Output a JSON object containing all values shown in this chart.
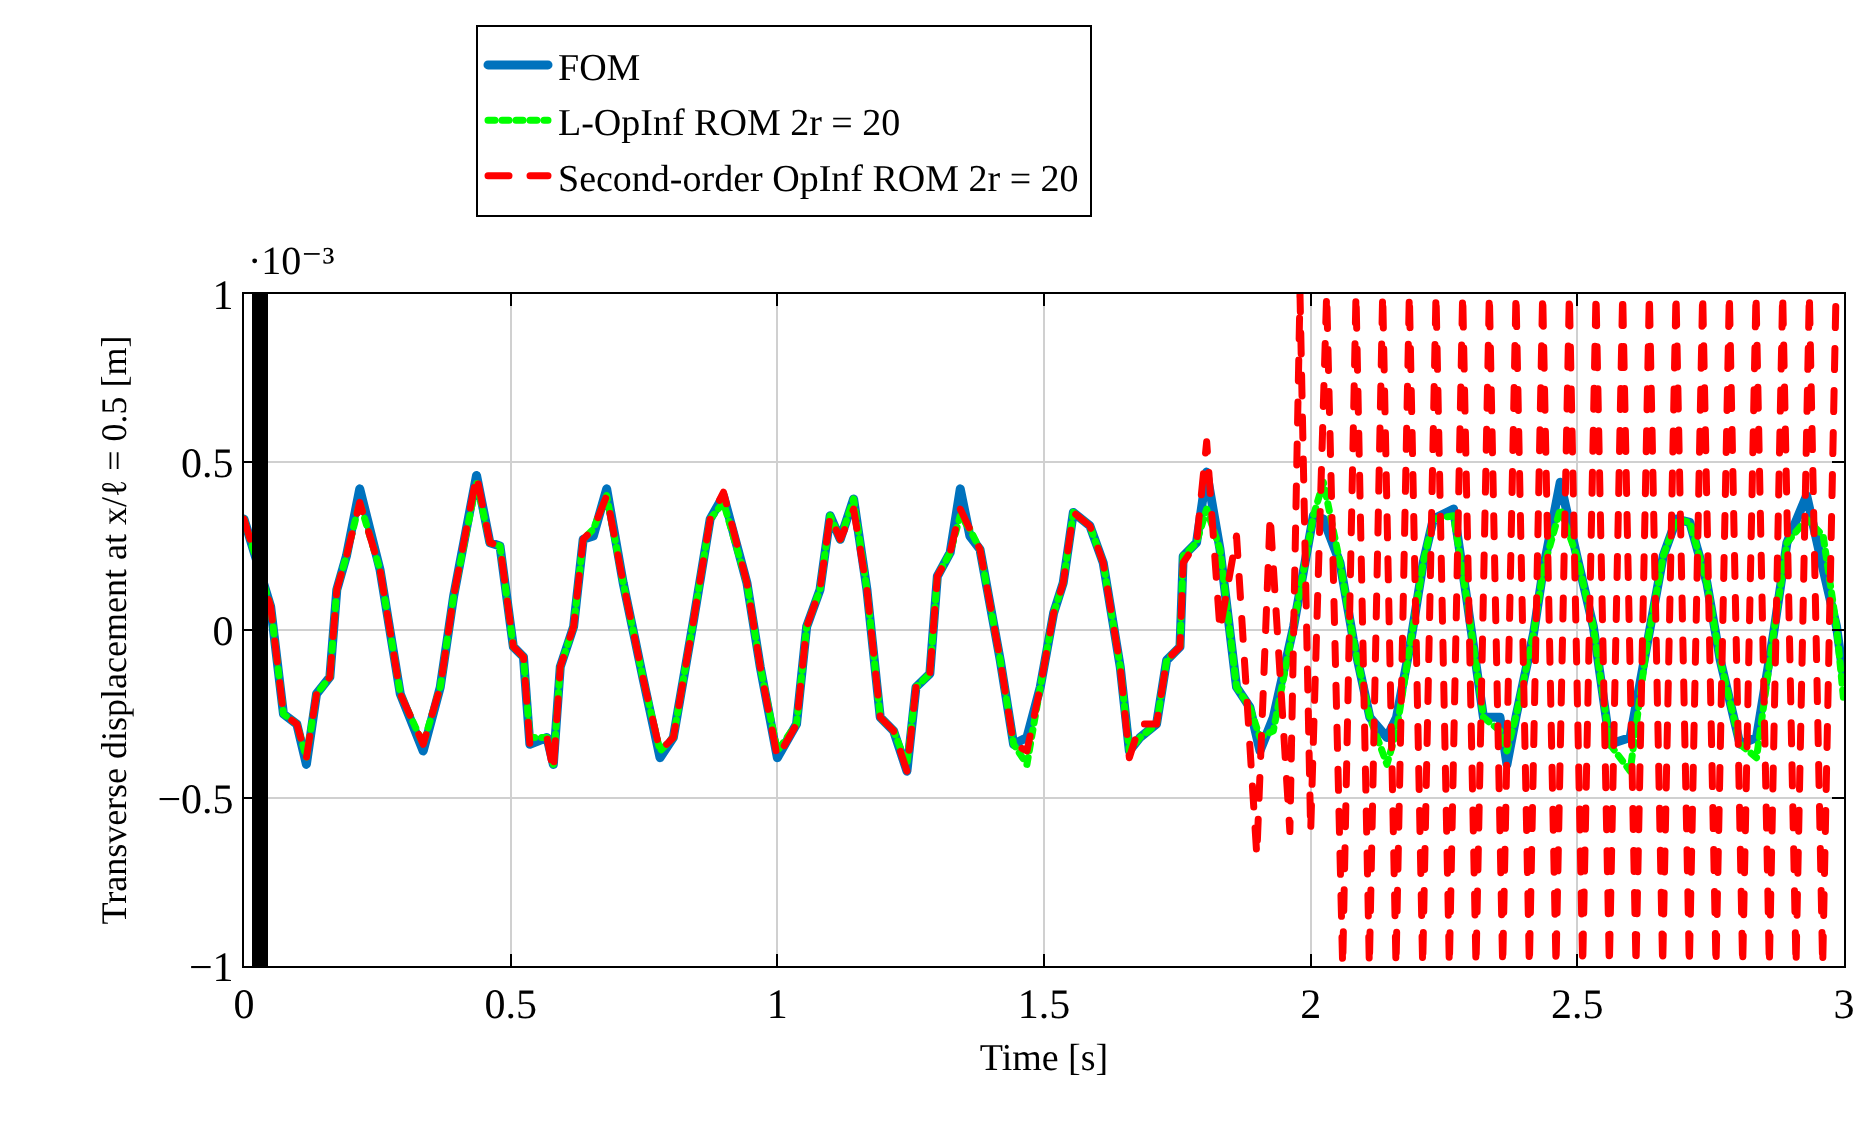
{
  "chart_data": {
    "type": "line",
    "xlabel": "Time [s]",
    "ylabel": "Transverse displacement at x/ℓ = 0.5 [m]",
    "annotations": [
      "·10⁻³"
    ],
    "xlim": [
      0,
      3
    ],
    "xticks": [
      0,
      0.5,
      1,
      1.5,
      2,
      2.5,
      3
    ],
    "ylim": [
      -1,
      1
    ],
    "yticks": [
      -1,
      -0.5,
      0,
      0.5,
      1
    ],
    "grid": true,
    "legend": "top",
    "marker": "none",
    "bands": [
      {
        "axis": "x",
        "from": 0.015,
        "to": 0.045,
        "color": "#000000"
      }
    ],
    "series": [
      {
        "name": "FOM",
        "color": "#0072bd",
        "line_style": "solid",
        "x": [
          0,
          0.05,
          0.074,
          0.099,
          0.117,
          0.136,
          0.161,
          0.174,
          0.192,
          0.217,
          0.255,
          0.293,
          0.336,
          0.368,
          0.393,
          0.436,
          0.461,
          0.48,
          0.505,
          0.524,
          0.536,
          0.568,
          0.58,
          0.593,
          0.618,
          0.636,
          0.655,
          0.68,
          0.711,
          0.749,
          0.78,
          0.805,
          0.843,
          0.874,
          0.899,
          0.943,
          0.968,
          1.0,
          1.036,
          1.055,
          1.08,
          1.099,
          1.118,
          1.143,
          1.168,
          1.193,
          1.218,
          1.243,
          1.26,
          1.286,
          1.3,
          1.324,
          1.343,
          1.361,
          1.38,
          1.418,
          1.443,
          1.468,
          1.493,
          1.518,
          1.536,
          1.555,
          1.586,
          1.611,
          1.643,
          1.66,
          1.68,
          1.711,
          1.73,
          1.755,
          1.761,
          1.786,
          1.805,
          1.83,
          1.861,
          1.886,
          1.905,
          1.93,
          1.968,
          2.005,
          2.024,
          2.055,
          2.08,
          2.111,
          2.143,
          2.161,
          2.186,
          2.211,
          2.23,
          2.268,
          2.293,
          2.324,
          2.355,
          2.368,
          2.386,
          2.418,
          2.436,
          2.468,
          2.499,
          2.53,
          2.561,
          2.599,
          2.63,
          2.661,
          2.686,
          2.711,
          2.743,
          2.768,
          2.805,
          2.836,
          2.868,
          2.893,
          2.93,
          2.961,
          2.986,
          3.0
        ],
        "values": [
          0.33,
          0.07,
          -0.25,
          -0.28,
          -0.4,
          -0.19,
          -0.14,
          0.12,
          0.22,
          0.42,
          0.18,
          -0.19,
          -0.36,
          -0.17,
          0.1,
          0.46,
          0.26,
          0.25,
          -0.05,
          -0.08,
          -0.34,
          -0.32,
          -0.4,
          -0.11,
          0.01,
          0.27,
          0.28,
          0.42,
          0.14,
          -0.15,
          -0.38,
          -0.32,
          0.03,
          0.33,
          0.4,
          0.14,
          -0.11,
          -0.38,
          -0.28,
          0.01,
          0.12,
          0.34,
          0.27,
          0.39,
          0.12,
          -0.26,
          -0.3,
          -0.42,
          -0.17,
          -0.13,
          0.16,
          0.23,
          0.42,
          0.28,
          0.24,
          -0.09,
          -0.34,
          -0.32,
          -0.17,
          0.05,
          0.14,
          0.35,
          0.31,
          0.2,
          -0.11,
          -0.36,
          -0.32,
          -0.28,
          -0.09,
          -0.05,
          0.22,
          0.26,
          0.47,
          0.24,
          -0.17,
          -0.23,
          -0.36,
          -0.26,
          0.01,
          0.34,
          0.33,
          0.2,
          -0.03,
          -0.26,
          -0.32,
          -0.26,
          -0.05,
          0.2,
          0.33,
          0.36,
          0.09,
          -0.26,
          -0.26,
          -0.4,
          -0.25,
          -0.01,
          0.18,
          0.44,
          0.22,
          0.01,
          -0.34,
          -0.32,
          -0.05,
          0.22,
          0.33,
          0.32,
          0.14,
          -0.09,
          -0.34,
          -0.32,
          -0.01,
          0.26,
          0.4,
          0.18,
          0.01,
          -0.15
        ]
      },
      {
        "name": "L-OpInf ROM 2r = 20",
        "color": "#00ff00",
        "line_style": "dotted",
        "x": [
          0,
          0.05,
          0.074,
          0.099,
          0.117,
          0.136,
          0.161,
          0.174,
          0.192,
          0.217,
          0.255,
          0.293,
          0.336,
          0.368,
          0.393,
          0.436,
          0.461,
          0.48,
          0.505,
          0.524,
          0.536,
          0.568,
          0.58,
          0.593,
          0.618,
          0.636,
          0.655,
          0.68,
          0.711,
          0.749,
          0.78,
          0.805,
          0.843,
          0.874,
          0.899,
          0.943,
          0.968,
          1.0,
          1.036,
          1.055,
          1.08,
          1.099,
          1.118,
          1.143,
          1.168,
          1.193,
          1.218,
          1.243,
          1.26,
          1.286,
          1.3,
          1.324,
          1.343,
          1.361,
          1.38,
          1.418,
          1.443,
          1.468,
          1.493,
          1.518,
          1.536,
          1.555,
          1.586,
          1.611,
          1.643,
          1.66,
          1.68,
          1.711,
          1.73,
          1.755,
          1.761,
          1.786,
          1.805,
          1.83,
          1.861,
          1.886,
          1.905,
          1.93,
          1.968,
          2.005,
          2.024,
          2.055,
          2.08,
          2.111,
          2.143,
          2.161,
          2.186,
          2.211,
          2.23,
          2.268,
          2.293,
          2.324,
          2.355,
          2.368,
          2.386,
          2.418,
          2.436,
          2.468,
          2.499,
          2.53,
          2.561,
          2.599,
          2.63,
          2.661,
          2.686,
          2.711,
          2.743,
          2.768,
          2.805,
          2.836,
          2.868,
          2.893,
          2.93,
          2.961,
          2.986,
          3.0
        ],
        "values": [
          0.33,
          0.07,
          -0.25,
          -0.28,
          -0.38,
          -0.19,
          -0.14,
          0.12,
          0.22,
          0.38,
          0.18,
          -0.19,
          -0.34,
          -0.17,
          0.1,
          0.44,
          0.26,
          0.25,
          -0.05,
          -0.08,
          -0.32,
          -0.32,
          -0.4,
          -0.11,
          0.01,
          0.27,
          0.3,
          0.4,
          0.14,
          -0.15,
          -0.36,
          -0.32,
          0.03,
          0.33,
          0.38,
          0.14,
          -0.11,
          -0.36,
          -0.28,
          0.01,
          0.12,
          0.34,
          0.27,
          0.39,
          0.12,
          -0.26,
          -0.3,
          -0.4,
          -0.17,
          -0.13,
          0.16,
          0.23,
          0.34,
          0.3,
          0.24,
          -0.09,
          -0.34,
          -0.4,
          -0.17,
          0.05,
          0.14,
          0.35,
          0.31,
          0.2,
          -0.11,
          -0.36,
          -0.32,
          -0.28,
          -0.09,
          -0.05,
          0.22,
          0.26,
          0.36,
          0.24,
          -0.17,
          -0.23,
          -0.32,
          -0.3,
          0.01,
          0.34,
          0.44,
          0.2,
          -0.03,
          -0.26,
          -0.4,
          -0.3,
          -0.05,
          0.2,
          0.33,
          0.34,
          0.09,
          -0.26,
          -0.3,
          -0.36,
          -0.25,
          -0.01,
          0.18,
          0.36,
          0.22,
          0.01,
          -0.34,
          -0.42,
          -0.05,
          0.22,
          0.33,
          0.32,
          0.14,
          -0.09,
          -0.34,
          -0.38,
          -0.01,
          0.26,
          0.33,
          0.28,
          0.01,
          -0.22
        ]
      },
      {
        "name": "Second-order OpInf ROM 2r = 20",
        "color": "#ff0000",
        "line_style": "dashed",
        "x": [
          0,
          0.05,
          0.074,
          0.099,
          0.117,
          0.136,
          0.161,
          0.174,
          0.192,
          0.217,
          0.255,
          0.293,
          0.336,
          0.368,
          0.393,
          0.436,
          0.461,
          0.48,
          0.505,
          0.524,
          0.536,
          0.568,
          0.58,
          0.593,
          0.618,
          0.636,
          0.655,
          0.68,
          0.711,
          0.749,
          0.78,
          0.805,
          0.843,
          0.874,
          0.899,
          0.943,
          0.968,
          1.0,
          1.036,
          1.055,
          1.08,
          1.099,
          1.118,
          1.143,
          1.168,
          1.193,
          1.218,
          1.243,
          1.26,
          1.286,
          1.3,
          1.324,
          1.343,
          1.361,
          1.38,
          1.418,
          1.443,
          1.468,
          1.493,
          1.518,
          1.536,
          1.555,
          1.586,
          1.611,
          1.643,
          1.66,
          1.68,
          1.711,
          1.73,
          1.755,
          1.761,
          1.786,
          1.805,
          1.83,
          1.861,
          1.899,
          1.924,
          1.961,
          1.98,
          2.0,
          2.03,
          2.06,
          2.085,
          2.11,
          2.135,
          2.16,
          2.185,
          2.21,
          2.235,
          2.26,
          2.285,
          2.31,
          2.335,
          2.36,
          2.385,
          2.41,
          2.435,
          2.46,
          2.485,
          2.51,
          2.535,
          2.56,
          2.585,
          2.61,
          2.635,
          2.66,
          2.685,
          2.71,
          2.735,
          2.76,
          2.785,
          2.81,
          2.835,
          2.86,
          2.885,
          2.91,
          2.935,
          2.96,
          2.985
        ],
        "values": [
          0.33,
          0.07,
          -0.25,
          -0.28,
          -0.38,
          -0.19,
          -0.14,
          0.12,
          0.22,
          0.38,
          0.18,
          -0.19,
          -0.34,
          -0.17,
          0.1,
          0.46,
          0.26,
          0.25,
          -0.05,
          -0.08,
          -0.34,
          -0.32,
          -0.42,
          -0.11,
          0.01,
          0.27,
          0.3,
          0.4,
          0.14,
          -0.15,
          -0.36,
          -0.32,
          0.03,
          0.33,
          0.41,
          0.14,
          -0.11,
          -0.38,
          -0.28,
          0.01,
          0.12,
          0.34,
          0.27,
          0.36,
          0.12,
          -0.26,
          -0.3,
          -0.42,
          -0.17,
          -0.13,
          0.16,
          0.23,
          0.36,
          0.3,
          0.24,
          -0.09,
          -0.34,
          -0.36,
          -0.17,
          0.05,
          0.14,
          0.35,
          0.31,
          0.2,
          -0.11,
          -0.38,
          -0.28,
          -0.28,
          -0.09,
          -0.05,
          0.2,
          0.26,
          0.56,
          0.0,
          0.28,
          -0.67,
          0.34,
          -0.6,
          1,
          -0.6,
          1,
          -1,
          1,
          -1,
          1,
          -1,
          1,
          -1,
          1,
          -1,
          1,
          -1,
          1,
          -1,
          1,
          -1,
          1,
          -1,
          1,
          -1,
          1,
          -1,
          1,
          -1,
          1,
          -1,
          1,
          -1,
          1,
          -1,
          1,
          -1,
          1,
          -1,
          1,
          -1,
          1,
          -1,
          1
        ]
      }
    ]
  }
}
